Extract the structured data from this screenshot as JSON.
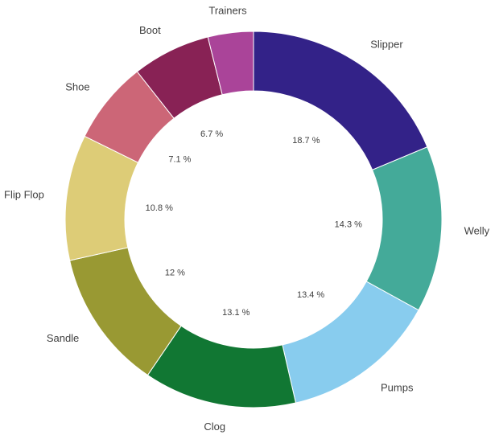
{
  "chart_data": {
    "type": "pie",
    "variant": "donut",
    "title": "",
    "start_angle_deg": 0,
    "direction": "clockwise",
    "legend": "none",
    "value_format": "{v} %",
    "slices": [
      {
        "label": "Slipper",
        "value": 18.7,
        "display": "18.7 %",
        "color": "#332288"
      },
      {
        "label": "Welly",
        "value": 14.3,
        "display": "14.3 %",
        "color": "#44aa99"
      },
      {
        "label": "Pumps",
        "value": 13.4,
        "display": "13.4 %",
        "color": "#88ccee"
      },
      {
        "label": "Clog",
        "value": 13.1,
        "display": "13.1 %",
        "color": "#117733"
      },
      {
        "label": "Sandle",
        "value": 12.0,
        "display": "12 %",
        "color": "#999933"
      },
      {
        "label": "Flip Flop",
        "value": 10.8,
        "display": "10.8 %",
        "color": "#ddcc77"
      },
      {
        "label": "Shoe",
        "value": 7.1,
        "display": "7.1 %",
        "color": "#cc6677"
      },
      {
        "label": "Boot",
        "value": 6.7,
        "display": "6.7 %",
        "color": "#882255"
      },
      {
        "label": "Trainers",
        "value": 3.9,
        "display": "",
        "color": "#aa4499"
      }
    ]
  }
}
